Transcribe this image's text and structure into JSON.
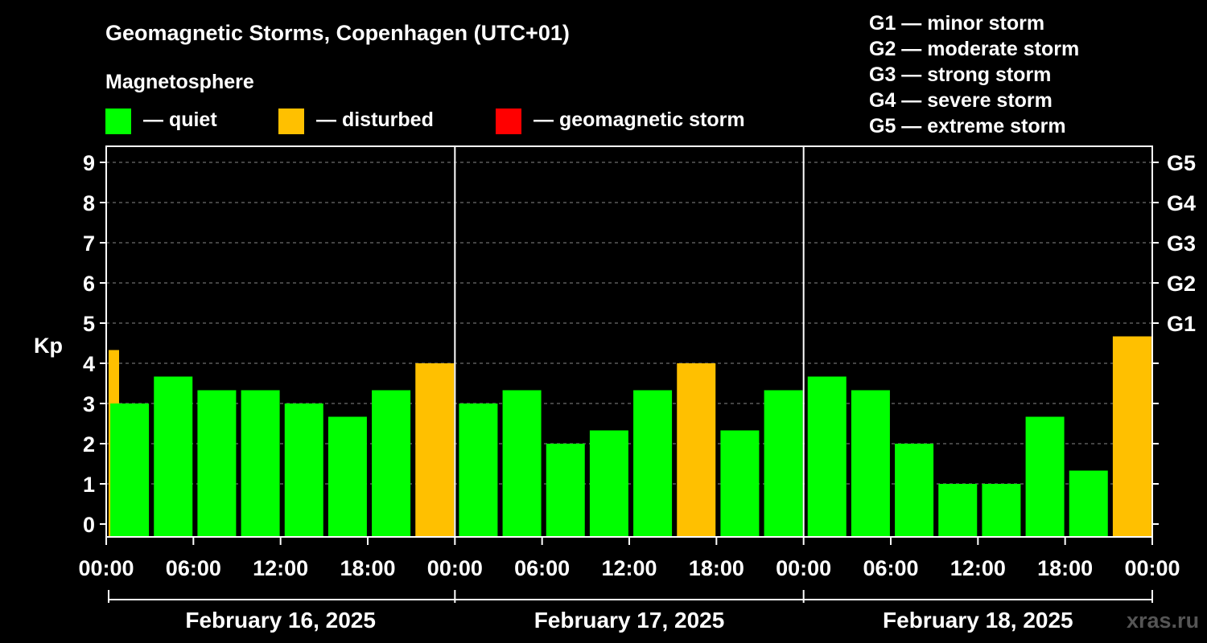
{
  "title": "Geomagnetic Storms, Copenhagen (UTC+01)",
  "legend": {
    "heading": "Magnetosphere",
    "items": [
      {
        "label": "— quiet",
        "color": "#00ff00"
      },
      {
        "label": "— disturbed",
        "color": "#ffc000"
      },
      {
        "label": "— geomagnetic storm",
        "color": "#ff0000"
      }
    ]
  },
  "storm_scale": [
    "G1 — minor storm",
    "G2 — moderate storm",
    "G3 — strong storm",
    "G4 — severe storm",
    "G5 — extreme storm"
  ],
  "watermark": "xras.ru",
  "chart_data": {
    "type": "bar",
    "ylabel": "Kp",
    "ylim": [
      0,
      9
    ],
    "yticks": [
      "0",
      "1",
      "2",
      "3",
      "4",
      "5",
      "6",
      "7",
      "8",
      "9"
    ],
    "right_ticks": [
      {
        "value": 5,
        "label": "G1"
      },
      {
        "value": 6,
        "label": "G2"
      },
      {
        "value": 7,
        "label": "G3"
      },
      {
        "value": 8,
        "label": "G4"
      },
      {
        "value": 9,
        "label": "G5"
      }
    ],
    "xticks": [
      "00:00",
      "06:00",
      "12:00",
      "18:00",
      "00:00",
      "06:00",
      "12:00",
      "18:00",
      "00:00",
      "06:00",
      "12:00",
      "18:00",
      "00:00"
    ],
    "dates": [
      "February 16, 2025",
      "February 17, 2025",
      "February 18, 2025"
    ],
    "grid": true,
    "bars": [
      {
        "value": 4.33,
        "color": "#ffc000",
        "start_hour": -0.25
      },
      {
        "value": 3.0,
        "color": "#00ff00"
      },
      {
        "value": 3.67,
        "color": "#00ff00"
      },
      {
        "value": 3.33,
        "color": "#00ff00"
      },
      {
        "value": 3.33,
        "color": "#00ff00"
      },
      {
        "value": 3.0,
        "color": "#00ff00"
      },
      {
        "value": 2.67,
        "color": "#00ff00"
      },
      {
        "value": 3.33,
        "color": "#00ff00"
      },
      {
        "value": 4.0,
        "color": "#ffc000"
      },
      {
        "value": 3.0,
        "color": "#00ff00"
      },
      {
        "value": 3.33,
        "color": "#00ff00"
      },
      {
        "value": 2.0,
        "color": "#00ff00"
      },
      {
        "value": 2.33,
        "color": "#00ff00"
      },
      {
        "value": 3.33,
        "color": "#00ff00"
      },
      {
        "value": 4.0,
        "color": "#ffc000"
      },
      {
        "value": 2.33,
        "color": "#00ff00"
      },
      {
        "value": 3.33,
        "color": "#00ff00"
      },
      {
        "value": 3.67,
        "color": "#00ff00"
      },
      {
        "value": 3.33,
        "color": "#00ff00"
      },
      {
        "value": 2.0,
        "color": "#00ff00"
      },
      {
        "value": 1.0,
        "color": "#00ff00"
      },
      {
        "value": 1.0,
        "color": "#00ff00"
      },
      {
        "value": 2.67,
        "color": "#00ff00"
      },
      {
        "value": 1.33,
        "color": "#00ff00"
      },
      {
        "value": 4.67,
        "color": "#ffc000"
      }
    ]
  }
}
